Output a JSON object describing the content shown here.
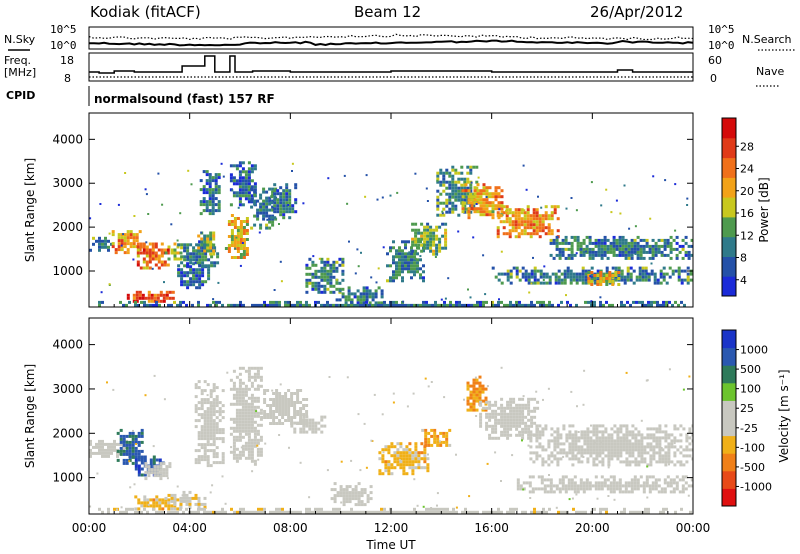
{
  "header": {
    "station": "Kodiak (fitACF)",
    "beam": "Beam 12",
    "date": "26/Apr/2012"
  },
  "noise_panel": {
    "left_label": "N.Sky",
    "right_label": "N.Search",
    "tick_labels": [
      "10^5",
      "10^0"
    ]
  },
  "freq_panel": {
    "left_label_top": "Freq.",
    "left_label_unit": "[MHz]",
    "left_ticks": [
      "18",
      "8"
    ],
    "right_ticks": [
      "60",
      "0"
    ],
    "right_label": "Nave"
  },
  "cpid": {
    "label": "CPID",
    "value": "normalsound (fast) 157 RF"
  },
  "x_axis": {
    "label": "Time UT",
    "ticks": [
      "00:00",
      "04:00",
      "08:00",
      "12:00",
      "16:00",
      "20:00",
      "00:00"
    ]
  },
  "y_axis": {
    "label": "Slant Range [km]",
    "ticks": [
      "1000",
      "2000",
      "3000",
      "4000"
    ]
  },
  "power_scale": {
    "label": "Power [dB]",
    "ticks": [
      "4",
      "8",
      "12",
      "16",
      "20",
      "24",
      "28"
    ],
    "colors": [
      "#1b2bd8",
      "#2451a8",
      "#2f7a8a",
      "#4e9a4e",
      "#c8c81e",
      "#f2a218",
      "#f0701a",
      "#e03a18",
      "#d40a0a"
    ]
  },
  "velocity_scale": {
    "label": "Velocity [m s⁻¹]",
    "ticks": [
      "1000",
      "500",
      "100",
      "25",
      "-25",
      "-100",
      "-500",
      "-1000"
    ],
    "colors": [
      "#1a34c8",
      "#2a58b0",
      "#2e7a5a",
      "#6cc42e",
      "#c8c8c0",
      "#c8c8c0",
      "#f0b018",
      "#f08018",
      "#e84a18",
      "#e01010"
    ]
  },
  "chart_data": [
    {
      "type": "heatmap",
      "title": "Power",
      "xlabel": "Time UT",
      "ylabel": "Slant Range [km]",
      "xlim": [
        0,
        24
      ],
      "ylim": [
        180,
        4600
      ],
      "colorbar": {
        "label": "Power [dB]",
        "range": [
          0,
          32
        ]
      },
      "patches": [
        {
          "t": [
            0.0,
            1.0
          ],
          "r": [
            1480,
            1780
          ],
          "v": 8
        },
        {
          "t": [
            0.9,
            2.0
          ],
          "r": [
            1450,
            2000
          ],
          "v": 22
        },
        {
          "t": [
            1.9,
            3.2
          ],
          "r": [
            1100,
            1650
          ],
          "v": 24
        },
        {
          "t": [
            3.0,
            3.6
          ],
          "r": [
            1250,
            1650
          ],
          "v": 16
        },
        {
          "t": [
            1.5,
            3.4
          ],
          "r": [
            300,
            550
          ],
          "v": 26
        },
        {
          "t": [
            3.5,
            4.8
          ],
          "r": [
            620,
            1200
          ],
          "v": 6
        },
        {
          "t": [
            3.5,
            5.1
          ],
          "r": [
            1100,
            1700
          ],
          "v": 8
        },
        {
          "t": [
            4.3,
            5.0
          ],
          "r": [
            1400,
            1900
          ],
          "v": 14
        },
        {
          "t": [
            4.4,
            5.2
          ],
          "r": [
            2300,
            3300
          ],
          "v": 7
        },
        {
          "t": [
            5.4,
            6.3
          ],
          "r": [
            1300,
            2300
          ],
          "v": 18
        },
        {
          "t": [
            5.6,
            6.6
          ],
          "r": [
            2500,
            3500
          ],
          "v": 6
        },
        {
          "t": [
            6.4,
            7.4
          ],
          "r": [
            2000,
            2900
          ],
          "v": 8
        },
        {
          "t": [
            7.2,
            8.2
          ],
          "r": [
            2200,
            3000
          ],
          "v": 7
        },
        {
          "t": [
            8.6,
            10.1
          ],
          "r": [
            500,
            1300
          ],
          "v": 8
        },
        {
          "t": [
            9.8,
            11.6
          ],
          "r": [
            250,
            650
          ],
          "v": 7
        },
        {
          "t": [
            11.8,
            13.3
          ],
          "r": [
            800,
            1700
          ],
          "v": 8
        },
        {
          "t": [
            12.8,
            14.2
          ],
          "r": [
            1400,
            2100
          ],
          "v": 12
        },
        {
          "t": [
            13.8,
            15.4
          ],
          "r": [
            2300,
            3400
          ],
          "v": 10
        },
        {
          "t": [
            14.8,
            16.4
          ],
          "r": [
            2200,
            3000
          ],
          "v": 20
        },
        {
          "t": [
            16.2,
            18.6
          ],
          "r": [
            1800,
            2500
          ],
          "v": 22
        },
        {
          "t": [
            18.3,
            24.0
          ],
          "r": [
            1300,
            1800
          ],
          "v": 8
        },
        {
          "t": [
            16.0,
            24.0
          ],
          "r": [
            700,
            1100
          ],
          "v": 8
        },
        {
          "t": [
            19.8,
            21.0
          ],
          "r": [
            700,
            1000
          ],
          "v": 18
        },
        {
          "t": [
            0.0,
            24.0
          ],
          "r": [
            180,
            320
          ],
          "v": 7
        }
      ]
    },
    {
      "type": "heatmap",
      "title": "Velocity",
      "xlabel": "Time UT",
      "ylabel": "Slant Range [km]",
      "xlim": [
        0,
        24
      ],
      "ylim": [
        180,
        4600
      ],
      "colorbar": {
        "label": "Velocity [m s-1]",
        "range": [
          -1000,
          1000
        ]
      },
      "patches": [
        {
          "t": [
            0.0,
            1.6
          ],
          "r": [
            1500,
            1850
          ],
          "v": 0
        },
        {
          "t": [
            1.1,
            2.1
          ],
          "r": [
            1350,
            2100
          ],
          "v": 700
        },
        {
          "t": [
            1.7,
            3.0
          ],
          "r": [
            1050,
            1500
          ],
          "v": 800
        },
        {
          "t": [
            2.2,
            3.2
          ],
          "r": [
            1000,
            1350
          ],
          "v": 50
        },
        {
          "t": [
            1.8,
            3.6
          ],
          "r": [
            280,
            600
          ],
          "v": -300
        },
        {
          "t": [
            3.0,
            4.6
          ],
          "r": [
            350,
            700
          ],
          "v": -150
        },
        {
          "t": [
            4.2,
            5.3
          ],
          "r": [
            1300,
            3200
          ],
          "v": 0
        },
        {
          "t": [
            5.6,
            6.8
          ],
          "r": [
            1300,
            3500
          ],
          "v": 0
        },
        {
          "t": [
            6.8,
            8.6
          ],
          "r": [
            2200,
            3000
          ],
          "v": 0
        },
        {
          "t": [
            8.0,
            9.4
          ],
          "r": [
            2000,
            2400
          ],
          "v": 0
        },
        {
          "t": [
            9.6,
            11.2
          ],
          "r": [
            400,
            900
          ],
          "v": 0
        },
        {
          "t": [
            11.5,
            13.5
          ],
          "r": [
            1100,
            1800
          ],
          "v": -300
        },
        {
          "t": [
            13.2,
            14.3
          ],
          "r": [
            1700,
            2100
          ],
          "v": -400
        },
        {
          "t": [
            15.0,
            15.8
          ],
          "r": [
            2500,
            3300
          ],
          "v": -500
        },
        {
          "t": [
            15.5,
            17.8
          ],
          "r": [
            1900,
            2800
          ],
          "v": 0
        },
        {
          "t": [
            17.5,
            24.0
          ],
          "r": [
            1300,
            2200
          ],
          "v": 0
        },
        {
          "t": [
            17.0,
            24.0
          ],
          "r": [
            650,
            1050
          ],
          "v": 0
        },
        {
          "t": [
            0.0,
            24.0
          ],
          "r": [
            180,
            320
          ],
          "v": -80
        }
      ]
    }
  ]
}
